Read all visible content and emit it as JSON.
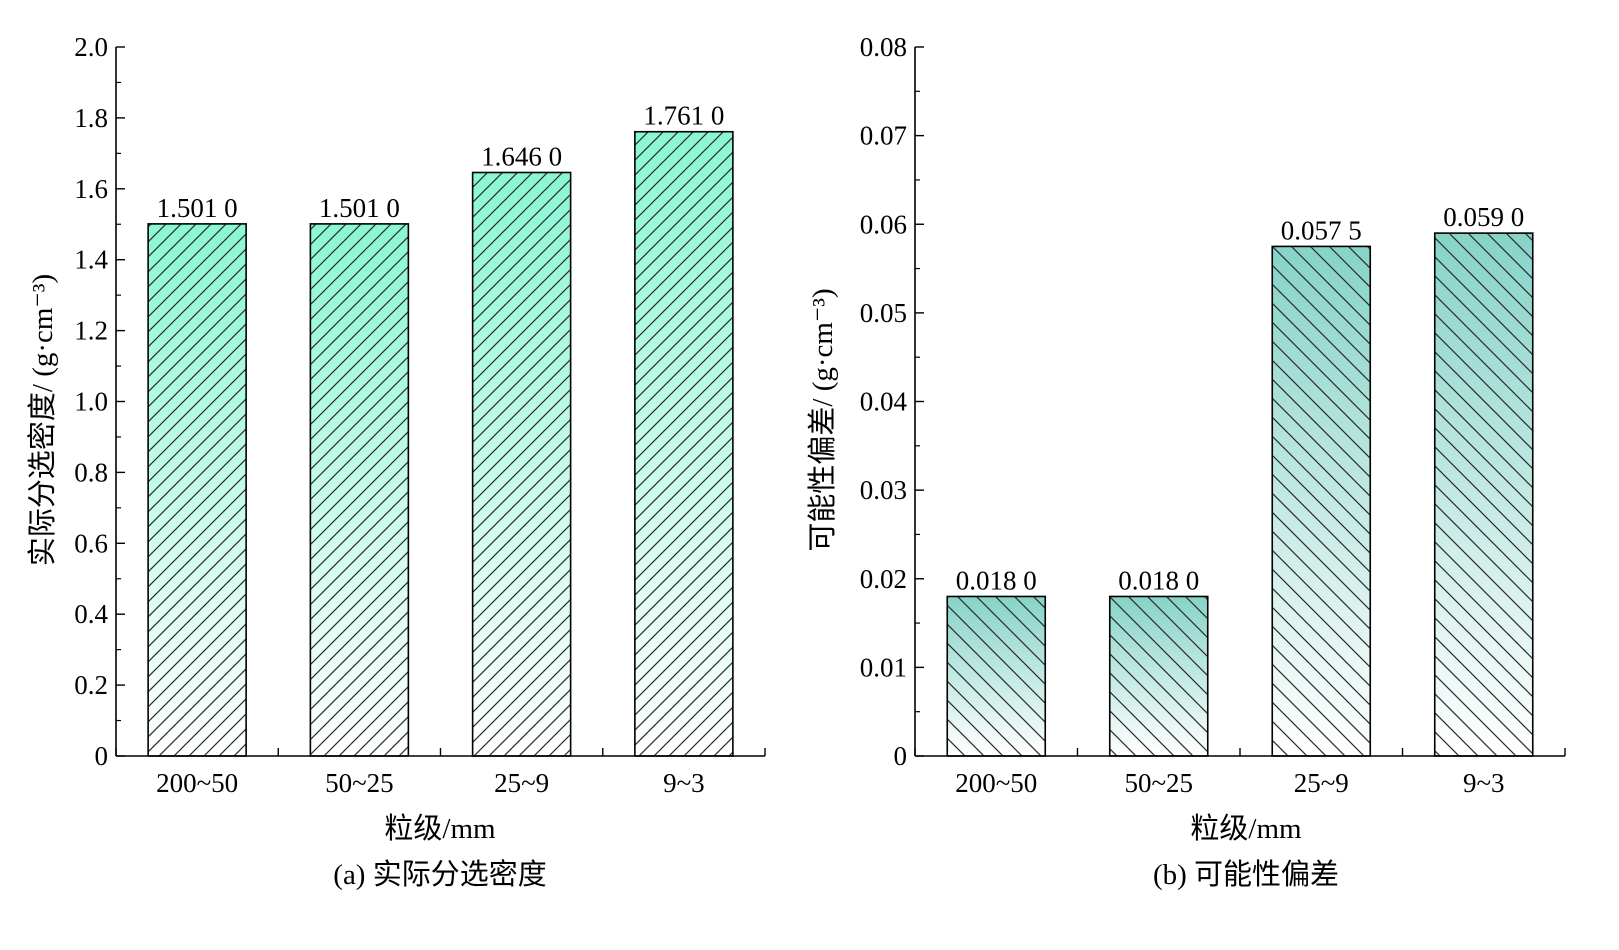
{
  "colors": {
    "panel_a_top": "#8af7d4",
    "panel_a_bottom": "#ffffff",
    "panel_b_top": "#86d3c8",
    "panel_b_bottom": "#ffffff",
    "hatch": "#2a2a2a",
    "axis": "#000000"
  },
  "chart_data": [
    {
      "type": "bar",
      "panel": "a",
      "caption": "(a) 实际分选密度",
      "categories": [
        "200~50",
        "50~25",
        "25~9",
        "9~3"
      ],
      "values": [
        1.501,
        1.501,
        1.646,
        1.761
      ],
      "value_labels": [
        "1.501 0",
        "1.501 0",
        "1.646 0",
        "1.761 0"
      ],
      "xlabel": "粒级/mm",
      "ylabel": "实际分选密度/ (g·cm⁻³)",
      "ylim": [
        0,
        2.0
      ],
      "y_ticks": [
        0,
        0.2,
        0.4,
        0.6,
        0.8,
        1.0,
        1.2,
        1.4,
        1.6,
        1.8,
        2.0
      ],
      "y_tick_labels": [
        "0",
        "0.2",
        "0.4",
        "0.6",
        "0.8",
        "1.0",
        "1.2",
        "1.4",
        "1.6",
        "1.8",
        "2.0"
      ],
      "hatch": "diagonal-right",
      "grid": false
    },
    {
      "type": "bar",
      "panel": "b",
      "caption": "(b) 可能性偏差",
      "categories": [
        "200~50",
        "50~25",
        "25~9",
        "9~3"
      ],
      "values": [
        0.018,
        0.018,
        0.0575,
        0.059
      ],
      "value_labels": [
        "0.018 0",
        "0.018 0",
        "0.057 5",
        "0.059 0"
      ],
      "xlabel": "粒级/mm",
      "ylabel": "可能性偏差/ (g·cm⁻³)",
      "ylim": [
        0,
        0.08
      ],
      "y_ticks": [
        0,
        0.01,
        0.02,
        0.03,
        0.04,
        0.05,
        0.06,
        0.07,
        0.08
      ],
      "y_tick_labels": [
        "0",
        "0.01",
        "0.02",
        "0.03",
        "0.04",
        "0.05",
        "0.06",
        "0.07",
        "0.08"
      ],
      "hatch": "diagonal-left",
      "grid": false
    }
  ]
}
